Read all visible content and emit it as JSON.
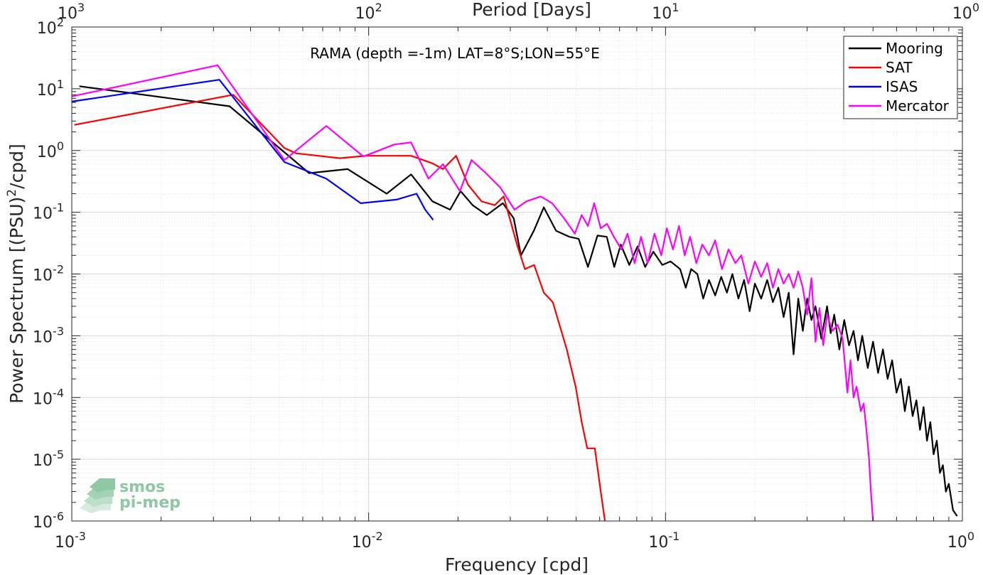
{
  "chart_data": {
    "type": "line",
    "annotation": "RAMA (depth =-1m) LAT=8°S;LON=55°E",
    "xlabel": "Frequency [cpd]",
    "ylabel": "Power Spectrum [(PSU)²/cpd]",
    "top_xlabel": "Period [Days]",
    "xscale": "log",
    "yscale": "log",
    "xlim": [
      0.001,
      1
    ],
    "ylim": [
      1e-06,
      100
    ],
    "grid": true,
    "legend_position": "top-right",
    "x_ticks": [
      {
        "base": "10",
        "exp": "-3",
        "value": 0.001
      },
      {
        "base": "10",
        "exp": "-2",
        "value": 0.01
      },
      {
        "base": "10",
        "exp": "-1",
        "value": 0.1
      },
      {
        "base": "10",
        "exp": "0",
        "value": 1
      }
    ],
    "y_ticks": [
      {
        "base": "10",
        "exp": "2",
        "value": 100
      },
      {
        "base": "10",
        "exp": "1",
        "value": 10
      },
      {
        "base": "10",
        "exp": "0",
        "value": 1
      },
      {
        "base": "10",
        "exp": "-1",
        "value": 0.1
      },
      {
        "base": "10",
        "exp": "-2",
        "value": 0.01
      },
      {
        "base": "10",
        "exp": "-3",
        "value": 0.001
      },
      {
        "base": "10",
        "exp": "-4",
        "value": 0.0001
      },
      {
        "base": "10",
        "exp": "-5",
        "value": 1e-05
      },
      {
        "base": "10",
        "exp": "-6",
        "value": 1e-06
      }
    ],
    "top_ticks": [
      {
        "base": "10",
        "exp": "3",
        "period": 1000
      },
      {
        "base": "10",
        "exp": "2",
        "period": 100
      },
      {
        "base": "10",
        "exp": "1",
        "period": 10
      },
      {
        "base": "10",
        "exp": "0",
        "period": 1
      }
    ],
    "series": [
      {
        "name": "Mooring",
        "color": "#000000",
        "points": [
          [
            0.00106,
            11
          ],
          [
            0.0034,
            5.2
          ],
          [
            0.0048,
            1.3
          ],
          [
            0.0063,
            0.43
          ],
          [
            0.0085,
            0.5
          ],
          [
            0.0115,
            0.2
          ],
          [
            0.0139,
            0.41
          ],
          [
            0.0164,
            0.15
          ],
          [
            0.0188,
            0.11
          ],
          [
            0.0204,
            0.22
          ],
          [
            0.0224,
            0.13
          ],
          [
            0.025,
            0.09
          ],
          [
            0.0283,
            0.14
          ],
          [
            0.0308,
            0.08
          ],
          [
            0.0326,
            0.02
          ],
          [
            0.036,
            0.05
          ],
          [
            0.0389,
            0.12
          ],
          [
            0.0428,
            0.05
          ],
          [
            0.0475,
            0.04
          ],
          [
            0.051,
            0.037
          ],
          [
            0.0548,
            0.013
          ],
          [
            0.059,
            0.042
          ],
          [
            0.0634,
            0.04
          ],
          [
            0.0672,
            0.013
          ],
          [
            0.0707,
            0.03
          ],
          [
            0.0755,
            0.014
          ],
          [
            0.0805,
            0.028
          ],
          [
            0.0854,
            0.013
          ],
          [
            0.091,
            0.023
          ],
          [
            0.0976,
            0.014
          ],
          [
            0.104,
            0.016
          ],
          [
            0.112,
            0.012
          ],
          [
            0.117,
            0.006
          ],
          [
            0.122,
            0.012
          ],
          [
            0.128,
            0.01
          ],
          [
            0.134,
            0.004
          ],
          [
            0.14,
            0.008
          ],
          [
            0.147,
            0.0045
          ],
          [
            0.154,
            0.009
          ],
          [
            0.161,
            0.005
          ],
          [
            0.168,
            0.01
          ],
          [
            0.176,
            0.004
          ],
          [
            0.184,
            0.008
          ],
          [
            0.192,
            0.0025
          ],
          [
            0.2,
            0.007
          ],
          [
            0.21,
            0.004
          ],
          [
            0.22,
            0.008
          ],
          [
            0.23,
            0.0035
          ],
          [
            0.24,
            0.006
          ],
          [
            0.25,
            0.002
          ],
          [
            0.26,
            0.005
          ],
          [
            0.27,
            0.0005
          ],
          [
            0.28,
            0.004
          ],
          [
            0.29,
            0.0012
          ],
          [
            0.3,
            0.004
          ],
          [
            0.31,
            0.0018
          ],
          [
            0.32,
            0.003
          ],
          [
            0.335,
            0.0009
          ],
          [
            0.35,
            0.003
          ],
          [
            0.36,
            0.0011
          ],
          [
            0.37,
            0.0022
          ],
          [
            0.385,
            0.0006
          ],
          [
            0.4,
            0.0018
          ],
          [
            0.415,
            0.0007
          ],
          [
            0.43,
            0.0012
          ],
          [
            0.445,
            0.0004
          ],
          [
            0.46,
            0.001
          ],
          [
            0.48,
            0.0003
          ],
          [
            0.5,
            0.0008
          ],
          [
            0.52,
            0.00025
          ],
          [
            0.54,
            0.0006
          ],
          [
            0.56,
            0.0002
          ],
          [
            0.58,
            0.0004
          ],
          [
            0.6,
            0.00012
          ],
          [
            0.62,
            0.0002
          ],
          [
            0.64,
            6e-05
          ],
          [
            0.66,
            0.00015
          ],
          [
            0.68,
            5e-05
          ],
          [
            0.7,
            9e-05
          ],
          [
            0.72,
            3e-05
          ],
          [
            0.74,
            7e-05
          ],
          [
            0.76,
            2e-05
          ],
          [
            0.78,
            4e-05
          ],
          [
            0.8,
            1.2e-05
          ],
          [
            0.82,
            2e-05
          ],
          [
            0.84,
            6e-06
          ],
          [
            0.86,
            8e-06
          ],
          [
            0.88,
            3e-06
          ],
          [
            0.9,
            4e-06
          ],
          [
            0.93,
            1.5e-06
          ],
          [
            0.96,
            1.2e-06
          ]
        ]
      },
      {
        "name": "SAT",
        "color": "#ff0000",
        "points": [
          [
            0.00102,
            2.6
          ],
          [
            0.0035,
            8
          ],
          [
            0.0052,
            1.1
          ],
          [
            0.0057,
            0.9
          ],
          [
            0.008,
            0.75
          ],
          [
            0.0098,
            0.82
          ],
          [
            0.0139,
            0.82
          ],
          [
            0.0164,
            0.62
          ],
          [
            0.0178,
            0.5
          ],
          [
            0.0197,
            0.82
          ],
          [
            0.0216,
            0.28
          ],
          [
            0.024,
            0.15
          ],
          [
            0.0266,
            0.13
          ],
          [
            0.0285,
            0.18
          ],
          [
            0.0316,
            0.03
          ],
          [
            0.0336,
            0.012
          ],
          [
            0.0361,
            0.014
          ],
          [
            0.0389,
            0.005
          ],
          [
            0.0417,
            0.0035
          ],
          [
            0.0465,
            0.0006
          ],
          [
            0.0498,
            0.00015
          ],
          [
            0.0522,
            4e-05
          ],
          [
            0.0545,
            1.5e-05
          ],
          [
            0.0578,
            1.5e-05
          ],
          [
            0.0605,
            3e-06
          ],
          [
            0.0625,
            1e-06
          ]
        ]
      },
      {
        "name": "ISAS",
        "color": "#0000ff",
        "points": [
          [
            0.001,
            6.2
          ],
          [
            0.00314,
            14
          ],
          [
            0.0052,
            0.65
          ],
          [
            0.0072,
            0.35
          ],
          [
            0.0094,
            0.14
          ],
          [
            0.0124,
            0.16
          ],
          [
            0.0145,
            0.2
          ],
          [
            0.0155,
            0.11
          ],
          [
            0.0165,
            0.075
          ]
        ]
      },
      {
        "name": "Mercator",
        "color": "#ff00ff",
        "points": [
          [
            0.001,
            7.5
          ],
          [
            0.0031,
            24
          ],
          [
            0.0052,
            0.7
          ],
          [
            0.0072,
            2.5
          ],
          [
            0.0096,
            0.8
          ],
          [
            0.0122,
            1.25
          ],
          [
            0.0139,
            1.35
          ],
          [
            0.0159,
            0.35
          ],
          [
            0.0178,
            0.6
          ],
          [
            0.0203,
            0.22
          ],
          [
            0.0222,
            0.7
          ],
          [
            0.0246,
            0.45
          ],
          [
            0.0278,
            0.25
          ],
          [
            0.031,
            0.11
          ],
          [
            0.034,
            0.15
          ],
          [
            0.038,
            0.18
          ],
          [
            0.0415,
            0.14
          ],
          [
            0.0455,
            0.08
          ],
          [
            0.0495,
            0.045
          ],
          [
            0.0522,
            0.09
          ],
          [
            0.0548,
            0.06
          ],
          [
            0.0575,
            0.14
          ],
          [
            0.0605,
            0.055
          ],
          [
            0.0635,
            0.065
          ],
          [
            0.067,
            0.04
          ],
          [
            0.071,
            0.025
          ],
          [
            0.0745,
            0.045
          ],
          [
            0.0787,
            0.015
          ],
          [
            0.0827,
            0.04
          ],
          [
            0.087,
            0.015
          ],
          [
            0.0918,
            0.045
          ],
          [
            0.0968,
            0.02
          ],
          [
            0.101,
            0.055
          ],
          [
            0.106,
            0.025
          ],
          [
            0.111,
            0.06
          ],
          [
            0.116,
            0.02
          ],
          [
            0.121,
            0.04
          ],
          [
            0.127,
            0.015
          ],
          [
            0.133,
            0.03
          ],
          [
            0.14,
            0.02
          ],
          [
            0.147,
            0.035
          ],
          [
            0.155,
            0.012
          ],
          [
            0.163,
            0.025
          ],
          [
            0.172,
            0.015
          ],
          [
            0.18,
            0.02
          ],
          [
            0.19,
            0.007
          ],
          [
            0.2,
            0.016
          ],
          [
            0.21,
            0.009
          ],
          [
            0.22,
            0.015
          ],
          [
            0.23,
            0.006
          ],
          [
            0.24,
            0.012
          ],
          [
            0.25,
            0.007
          ],
          [
            0.26,
            0.01
          ],
          [
            0.27,
            0.006
          ],
          [
            0.28,
            0.011
          ],
          [
            0.29,
            0.006
          ],
          [
            0.3,
            0.0022
          ],
          [
            0.31,
            0.0085
          ],
          [
            0.32,
            0.0008
          ],
          [
            0.33,
            0.0028
          ],
          [
            0.34,
            0.0007
          ],
          [
            0.35,
            0.0022
          ],
          [
            0.365,
            0.0012
          ],
          [
            0.38,
            0.0015
          ],
          [
            0.395,
            0.0009
          ],
          [
            0.41,
            0.00012
          ],
          [
            0.42,
            0.0004
          ],
          [
            0.43,
            0.0001
          ],
          [
            0.44,
            0.00015
          ],
          [
            0.455,
            6e-05
          ],
          [
            0.465,
            8e-05
          ],
          [
            0.475,
            3e-05
          ],
          [
            0.485,
            1e-05
          ],
          [
            0.492,
            3e-06
          ],
          [
            0.5,
            1e-06
          ]
        ]
      }
    ]
  },
  "logo": {
    "line1": "smos",
    "line2": "pi-mep"
  }
}
